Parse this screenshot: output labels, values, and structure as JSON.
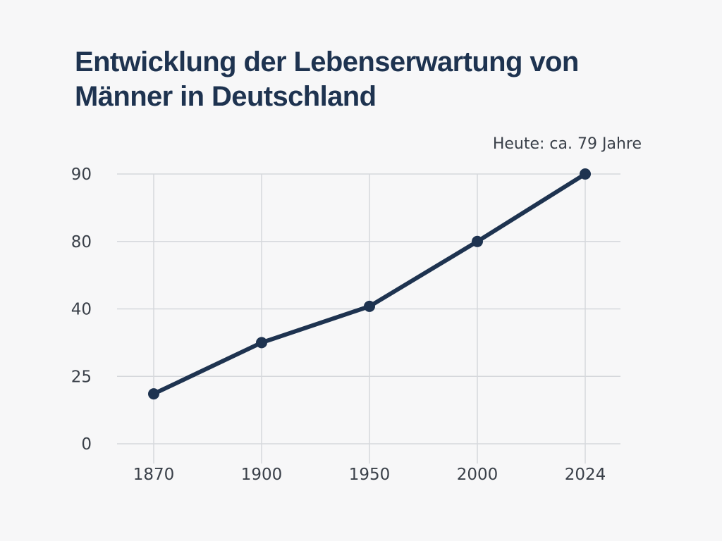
{
  "chart_data": {
    "type": "line",
    "title": "Entwicklung der Lebenserwartung von Männer in Deutschland",
    "annotation": "Heute: ca. 79 Jahre",
    "xlabel": "",
    "ylabel": "",
    "categories": [
      "1870",
      "1900",
      "1950",
      "2000",
      "2024"
    ],
    "y_ticks": [
      "0",
      "25",
      "40",
      "80",
      "90"
    ],
    "y_scale": "categorical (evenly spaced tick labels)",
    "series": [
      {
        "values": [
          18.5,
          32.5,
          41.5,
          80,
          90
        ]
      }
    ],
    "grid": true,
    "legend": "none",
    "colors": {
      "line": "#1e3350",
      "grid": "#d6d8dc",
      "text": "#3a4049",
      "title": "#1e3350"
    }
  }
}
